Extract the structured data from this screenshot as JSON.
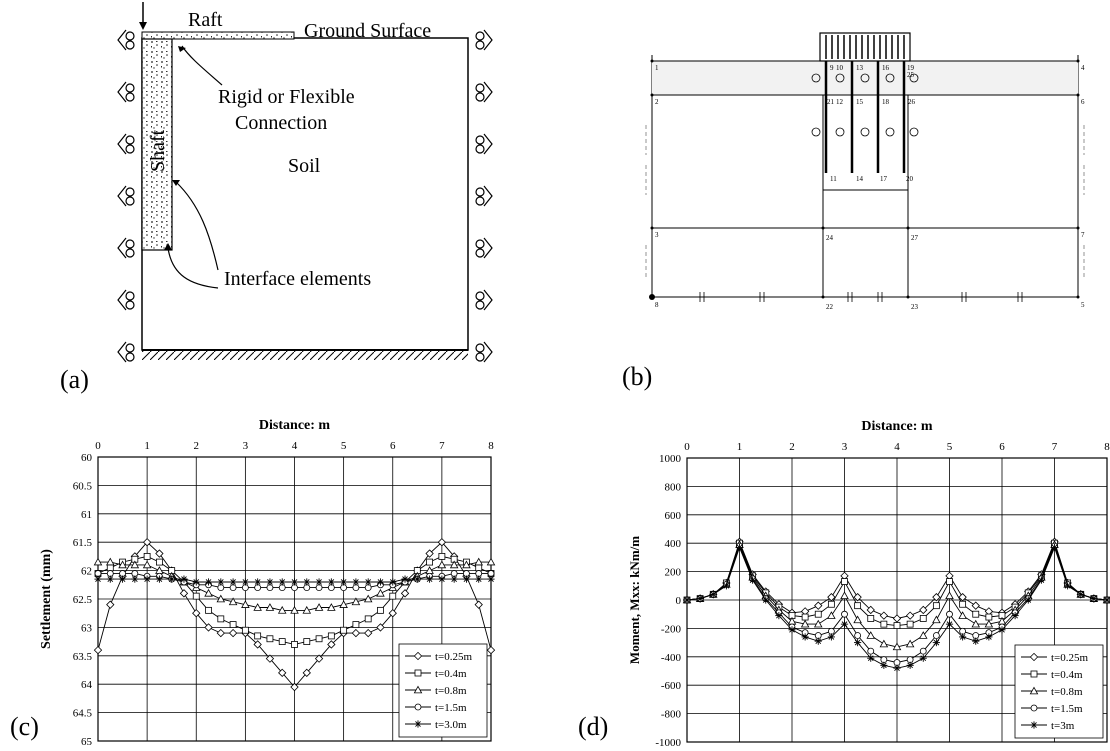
{
  "panels": {
    "a": {
      "label": "(a)",
      "raft": "Raft",
      "ground": "Ground Surface",
      "connection_1": "Rigid or Flexible",
      "connection_2": "Connection",
      "shaft": "Shaft",
      "soil": "Soil",
      "interface": "Interface elements"
    },
    "b": {
      "label": "(b)",
      "node_labels": [
        "1",
        "2",
        "3",
        "4",
        "5",
        "6",
        "7",
        "8",
        "9",
        "10",
        "11",
        "12",
        "13",
        "14",
        "15",
        "16",
        "17",
        "18",
        "19",
        "20",
        "21",
        "22",
        "23",
        "24",
        "25",
        "26",
        "27"
      ]
    },
    "c": {
      "label": "(c)"
    },
    "d": {
      "label": "(d)"
    }
  },
  "chart_data": [
    {
      "type": "line",
      "title": "Distance: m",
      "xlabel": "Distance: m",
      "ylabel": "Settlement (mm)",
      "xlim": [
        0,
        8
      ],
      "ylim": [
        60,
        65
      ],
      "y_inverted": true,
      "xticks": [
        0,
        1,
        2,
        3,
        4,
        5,
        6,
        7,
        8
      ],
      "yticks": [
        60,
        60.5,
        61,
        61.5,
        62,
        62.5,
        63,
        63.5,
        64,
        64.5,
        65
      ],
      "grid": true,
      "legend_position": "bottom-right",
      "x": [
        0,
        0.25,
        0.5,
        0.75,
        1,
        1.25,
        1.5,
        1.75,
        2,
        2.25,
        2.5,
        2.75,
        3,
        3.25,
        3.5,
        3.75,
        4,
        4.25,
        4.5,
        4.75,
        5,
        5.25,
        5.5,
        5.75,
        6,
        6.25,
        6.5,
        6.75,
        7,
        7.25,
        7.5,
        7.75,
        8
      ],
      "series": [
        {
          "name": "t=0.25m",
          "marker": "diamond",
          "values": [
            63.4,
            62.6,
            62.1,
            61.75,
            61.5,
            61.7,
            62.0,
            62.4,
            62.75,
            63.0,
            63.1,
            63.1,
            63.1,
            63.3,
            63.55,
            63.8,
            64.05,
            63.8,
            63.55,
            63.3,
            63.1,
            63.1,
            63.1,
            63.0,
            62.75,
            62.4,
            62.0,
            61.7,
            61.5,
            61.75,
            62.1,
            62.6,
            63.4
          ]
        },
        {
          "name": "t=0.4m",
          "marker": "square",
          "values": [
            62.05,
            61.95,
            61.85,
            61.8,
            61.75,
            61.85,
            62.0,
            62.2,
            62.45,
            62.7,
            62.85,
            62.95,
            63.05,
            63.15,
            63.2,
            63.25,
            63.3,
            63.25,
            63.2,
            63.15,
            63.05,
            62.95,
            62.85,
            62.7,
            62.45,
            62.2,
            62.0,
            61.85,
            61.75,
            61.8,
            61.85,
            61.95,
            62.05
          ]
        },
        {
          "name": "t=0.8m",
          "marker": "triangle",
          "values": [
            61.85,
            61.85,
            61.9,
            61.9,
            61.9,
            62.0,
            62.1,
            62.2,
            62.3,
            62.4,
            62.5,
            62.55,
            62.6,
            62.65,
            62.65,
            62.7,
            62.7,
            62.7,
            62.65,
            62.65,
            62.6,
            62.55,
            62.5,
            62.4,
            62.3,
            62.2,
            62.1,
            62.0,
            61.9,
            61.9,
            61.9,
            61.85,
            61.85
          ]
        },
        {
          "name": "t=1.5m",
          "marker": "circle",
          "values": [
            62.05,
            62.05,
            62.05,
            62.05,
            62.1,
            62.1,
            62.15,
            62.2,
            62.25,
            62.25,
            62.3,
            62.3,
            62.3,
            62.3,
            62.3,
            62.3,
            62.3,
            62.3,
            62.3,
            62.3,
            62.3,
            62.3,
            62.3,
            62.25,
            62.25,
            62.2,
            62.15,
            62.1,
            62.1,
            62.05,
            62.05,
            62.05,
            62.05
          ]
        },
        {
          "name": "t=3.0m",
          "marker": "asterisk",
          "values": [
            62.15,
            62.15,
            62.15,
            62.15,
            62.15,
            62.15,
            62.15,
            62.15,
            62.2,
            62.2,
            62.2,
            62.2,
            62.2,
            62.2,
            62.2,
            62.2,
            62.2,
            62.2,
            62.2,
            62.2,
            62.2,
            62.2,
            62.2,
            62.2,
            62.2,
            62.15,
            62.15,
            62.15,
            62.15,
            62.15,
            62.15,
            62.15,
            62.15
          ]
        }
      ]
    },
    {
      "type": "line",
      "title": "Distance: m",
      "xlabel": "Distance: m",
      "ylabel": "Moment, Mxx: kNm/m",
      "xlim": [
        0,
        8
      ],
      "ylim": [
        -1000,
        1000
      ],
      "xticks": [
        0,
        1,
        2,
        3,
        4,
        5,
        6,
        7,
        8
      ],
      "yticks": [
        1000,
        800,
        600,
        400,
        200,
        0,
        -200,
        -400,
        -600,
        -800,
        -1000
      ],
      "grid": true,
      "legend_position": "bottom-right",
      "x": [
        0,
        0.25,
        0.5,
        0.75,
        1,
        1.25,
        1.5,
        1.75,
        2,
        2.25,
        2.5,
        2.75,
        3,
        3.25,
        3.5,
        3.75,
        4,
        4.25,
        4.5,
        4.75,
        5,
        5.25,
        5.5,
        5.75,
        6,
        6.25,
        6.5,
        6.75,
        7,
        7.25,
        7.5,
        7.75,
        8
      ],
      "series": [
        {
          "name": "t=0.25m",
          "marker": "diamond",
          "values": [
            0,
            10,
            40,
            120,
            410,
            180,
            60,
            -30,
            -90,
            -80,
            -40,
            20,
            170,
            20,
            -70,
            -110,
            -130,
            -110,
            -70,
            20,
            170,
            20,
            -40,
            -80,
            -90,
            -30,
            60,
            180,
            410,
            120,
            40,
            10,
            0
          ]
        },
        {
          "name": "t=0.4m",
          "marker": "square",
          "values": [
            0,
            10,
            40,
            120,
            400,
            170,
            50,
            -50,
            -110,
            -120,
            -100,
            -30,
            130,
            -40,
            -130,
            -170,
            -180,
            -170,
            -130,
            -40,
            130,
            -30,
            -100,
            -120,
            -110,
            -50,
            50,
            170,
            400,
            120,
            40,
            10,
            0
          ]
        },
        {
          "name": "t=0.8m",
          "marker": "triangle",
          "values": [
            0,
            10,
            40,
            110,
            390,
            160,
            30,
            -70,
            -150,
            -170,
            -170,
            -110,
            30,
            -140,
            -250,
            -310,
            -330,
            -310,
            -250,
            -140,
            30,
            -110,
            -170,
            -170,
            -150,
            -70,
            30,
            160,
            390,
            110,
            40,
            10,
            0
          ]
        },
        {
          "name": "t=1.5m",
          "marker": "circle",
          "values": [
            0,
            10,
            40,
            110,
            380,
            150,
            10,
            -90,
            -190,
            -230,
            -250,
            -220,
            -100,
            -250,
            -360,
            -420,
            -440,
            -420,
            -360,
            -250,
            -100,
            -220,
            -250,
            -230,
            -190,
            -90,
            10,
            150,
            380,
            110,
            40,
            10,
            0
          ]
        },
        {
          "name": "t=3m",
          "marker": "asterisk",
          "values": [
            0,
            10,
            40,
            100,
            370,
            140,
            0,
            -110,
            -210,
            -260,
            -290,
            -260,
            -170,
            -300,
            -410,
            -460,
            -480,
            -460,
            -410,
            -300,
            -170,
            -260,
            -290,
            -260,
            -210,
            -110,
            0,
            140,
            370,
            100,
            40,
            10,
            0
          ]
        }
      ]
    }
  ]
}
